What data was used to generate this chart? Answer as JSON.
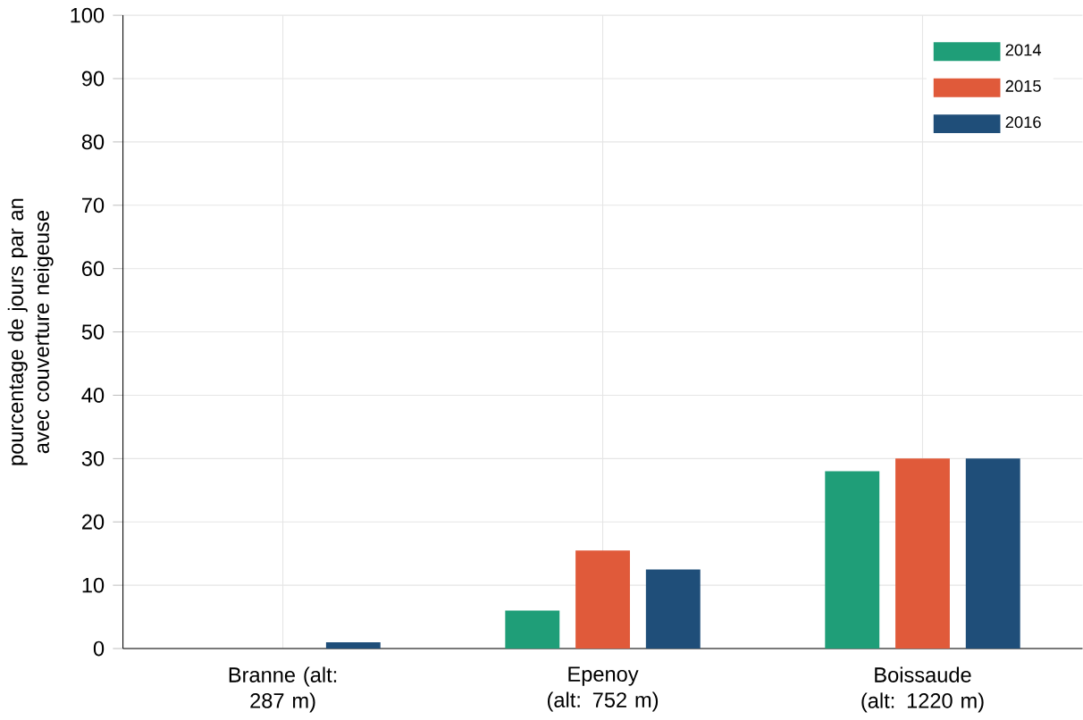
{
  "chart_data": {
    "type": "bar",
    "ylabel": "pourcentage de jours par an avec couverture neigeuse",
    "categories": [
      "Branne (alt: 287 m)",
      "Epenoy (alt: 752 m)",
      "Boissaude (alt: 1220 m)"
    ],
    "series": [
      {
        "name": "2014",
        "color": "#1f9e78",
        "values": [
          0,
          6,
          28
        ]
      },
      {
        "name": "2015",
        "color": "#e05a3a",
        "values": [
          0,
          15.5,
          30
        ]
      },
      {
        "name": "2016",
        "color": "#1f4e79",
        "values": [
          1,
          12.5,
          30
        ]
      }
    ],
    "ylim": [
      0,
      100
    ],
    "yticks": [
      0,
      10,
      20,
      30,
      40,
      50,
      60,
      70,
      80,
      90,
      100
    ],
    "grid": true,
    "legend": "top right"
  }
}
